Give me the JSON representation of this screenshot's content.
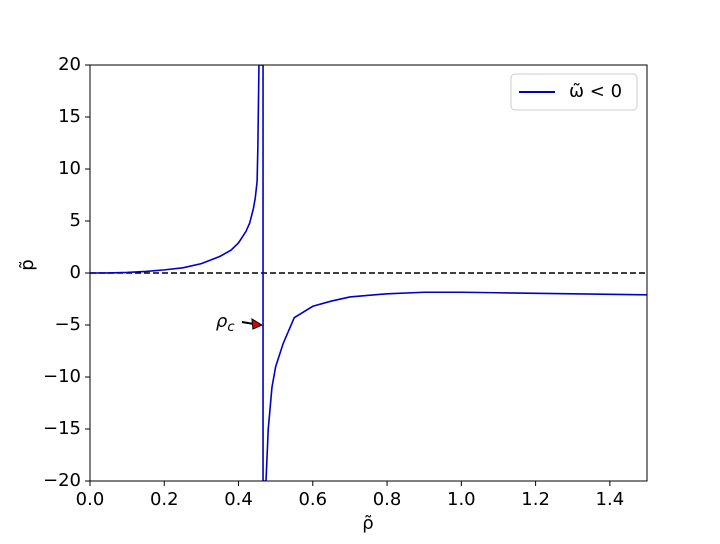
{
  "chart_data": {
    "type": "line",
    "xlabel": "ρ̃",
    "ylabel": "p̃",
    "x": [
      0,
      0.05,
      0.1,
      0.15,
      0.2,
      0.25,
      0.3,
      0.35,
      0.38,
      0.4,
      0.42,
      0.43,
      0.44,
      0.445,
      0.45,
      0.452,
      0.455,
      0.466,
      0.466,
      0.474,
      0.48,
      0.49,
      0.5,
      0.52,
      0.55,
      0.6,
      0.65,
      0.7,
      0.8,
      0.9,
      1.0,
      1.1,
      1.2,
      1.3,
      1.4,
      1.5
    ],
    "series": [
      {
        "name": "ω̃ < 0",
        "color": "#0000cc",
        "values": [
          0,
          0.01,
          0.05,
          0.15,
          0.3,
          0.5,
          0.9,
          1.6,
          2.2,
          2.9,
          4.0,
          4.8,
          6.2,
          7.2,
          8.8,
          12,
          20,
          20,
          -20,
          -20,
          -15,
          -11,
          -9,
          -6.8,
          -4.3,
          -3.2,
          -2.7,
          -2.3,
          -2.0,
          -1.85,
          -1.85,
          -1.9,
          -1.95,
          -2.0,
          -2.05,
          -2.1
        ]
      }
    ],
    "hline": 0,
    "annotation": {
      "label": "ρ",
      "subscript": "c",
      "x": 0.463,
      "y": -5
    },
    "xlim": [
      0,
      1.5
    ],
    "xticks": [
      {
        "value": 0,
        "label": "0.0"
      },
      0.2,
      0.4,
      0.6,
      0.8,
      {
        "value": 1,
        "label": "1.0"
      },
      1.2,
      1.4
    ],
    "ylim": [
      -20,
      20
    ],
    "yticks": [
      {
        "value": -20,
        "label": "−20"
      },
      {
        "value": -15,
        "label": "−15"
      },
      {
        "value": -10,
        "label": "−10"
      },
      {
        "value": -5,
        "label": "−5"
      },
      0,
      5,
      10,
      15,
      20
    ],
    "legend": "upper right"
  }
}
